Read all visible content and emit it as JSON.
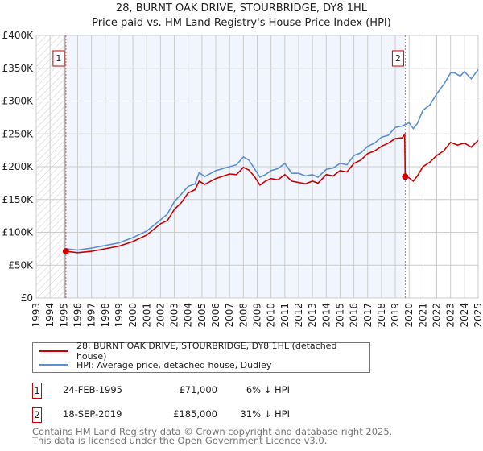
{
  "chart_data": {
    "type": "line",
    "title": "28, BURNT OAK DRIVE, STOURBRIDGE, DY8 1HL",
    "subtitle": "Price paid vs. HM Land Registry's House Price Index (HPI)",
    "xlim": [
      1993,
      2025
    ],
    "ylim": [
      0,
      400000
    ],
    "x_ticks": [
      "1993",
      "1994",
      "1995",
      "1996",
      "1997",
      "1998",
      "1999",
      "2000",
      "2001",
      "2002",
      "2003",
      "2004",
      "2005",
      "2006",
      "2007",
      "2008",
      "2009",
      "2010",
      "2011",
      "2012",
      "2013",
      "2014",
      "2015",
      "2016",
      "2017",
      "2018",
      "2019",
      "2020",
      "2021",
      "2022",
      "2023",
      "2024",
      "2025"
    ],
    "y_ticks": [
      {
        "v": 0,
        "label": "£0"
      },
      {
        "v": 50000,
        "label": "£50K"
      },
      {
        "v": 100000,
        "label": "£100K"
      },
      {
        "v": 150000,
        "label": "£150K"
      },
      {
        "v": 200000,
        "label": "£200K"
      },
      {
        "v": 250000,
        "label": "£250K"
      },
      {
        "v": 300000,
        "label": "£300K"
      },
      {
        "v": 350000,
        "label": "£350K"
      },
      {
        "v": 400000,
        "label": "£400K"
      }
    ],
    "series": [
      {
        "name": "28, BURNT OAK DRIVE, STOURBRIDGE, DY8 1HL (detached house)",
        "color": "#cc0000",
        "x": [
          1995.15,
          1996,
          1997,
          1998,
          1999,
          2000,
          2001,
          2002,
          2002.5,
          2003,
          2003.5,
          2004,
          2004.5,
          2004.8,
          2005.2,
          2006,
          2007,
          2007.5,
          2008,
          2008.4,
          2008.8,
          2009.2,
          2009.6,
          2010,
          2010.5,
          2011,
          2011.5,
          2012,
          2012.5,
          2013,
          2013.4,
          2014,
          2014.5,
          2015,
          2015.5,
          2016,
          2016.5,
          2017,
          2017.5,
          2018,
          2018.5,
          2019,
          2019.5,
          2019.68,
          2019.72,
          2020,
          2020.3,
          2020.6,
          2021,
          2021.5,
          2022,
          2022.5,
          2023,
          2023.5,
          2024,
          2024.5,
          2025
        ],
        "y": [
          71000,
          69000,
          71000,
          75000,
          79000,
          86000,
          96000,
          113000,
          118000,
          135000,
          145000,
          160000,
          165000,
          178000,
          173000,
          182000,
          189000,
          188000,
          199000,
          195000,
          185000,
          172000,
          178000,
          182000,
          180000,
          188000,
          178000,
          176000,
          174000,
          178000,
          175000,
          188000,
          186000,
          194000,
          192000,
          205000,
          210000,
          220000,
          224000,
          231000,
          236000,
          243000,
          244000,
          249000,
          185000,
          183000,
          178000,
          186000,
          200000,
          207000,
          217000,
          224000,
          237000,
          233000,
          236000,
          230000,
          240000
        ]
      },
      {
        "name": "HPI: Average price, detached house, Dudley",
        "color": "#5b8fd4",
        "x": [
          1995.15,
          1996,
          1997,
          1998,
          1999,
          2000,
          2001,
          2002,
          2002.5,
          2003,
          2003.5,
          2004,
          2004.5,
          2004.8,
          2005.2,
          2006,
          2007,
          2007.5,
          2008,
          2008.4,
          2008.8,
          2009.2,
          2009.6,
          2010,
          2010.5,
          2011,
          2011.5,
          2012,
          2012.5,
          2013,
          2013.4,
          2014,
          2014.5,
          2015,
          2015.5,
          2016,
          2016.5,
          2017,
          2017.5,
          2018,
          2018.5,
          2019,
          2019.5,
          2020,
          2020.3,
          2020.6,
          2021,
          2021.5,
          2022,
          2022.5,
          2023,
          2023.3,
          2023.7,
          2024,
          2024.5,
          2025
        ],
        "y": [
          75000,
          73000,
          76000,
          80000,
          84000,
          92000,
          102000,
          119000,
          128000,
          147000,
          158000,
          170000,
          174000,
          191000,
          185000,
          194000,
          200000,
          203000,
          215000,
          210000,
          197000,
          184000,
          188000,
          194000,
          197000,
          205000,
          190000,
          190000,
          186000,
          188000,
          184000,
          196000,
          198000,
          205000,
          203000,
          217000,
          221000,
          231000,
          236000,
          245000,
          248000,
          260000,
          262000,
          267000,
          258000,
          266000,
          286000,
          294000,
          311000,
          325000,
          343000,
          343000,
          338000,
          345000,
          334000,
          348000
        ]
      }
    ],
    "legend": {
      "placement": "bottom",
      "entries": [
        "28, BURNT OAK DRIVE, STOURBRIDGE, DY8 1HL (detached house)",
        "HPI: Average price, detached house, Dudley"
      ]
    },
    "annotations": [
      {
        "label": "1",
        "x": 1995.15,
        "y": 71000
      },
      {
        "label": "2",
        "x": 2019.72,
        "y": 185000
      }
    ],
    "hatched_range": [
      1993,
      1995.15
    ],
    "shaded_range": [
      1995.15,
      2019.72
    ]
  },
  "sales": [
    {
      "num": "1",
      "date": "24-FEB-1995",
      "price": "£71,000",
      "hpi": "6% ↓ HPI"
    },
    {
      "num": "2",
      "date": "18-SEP-2019",
      "price": "£185,000",
      "hpi": "31% ↓ HPI"
    }
  ],
  "footer": {
    "line1": "Contains HM Land Registry data © Crown copyright and database right 2025.",
    "line2": "This data is licensed under the Open Government Licence v3.0."
  }
}
